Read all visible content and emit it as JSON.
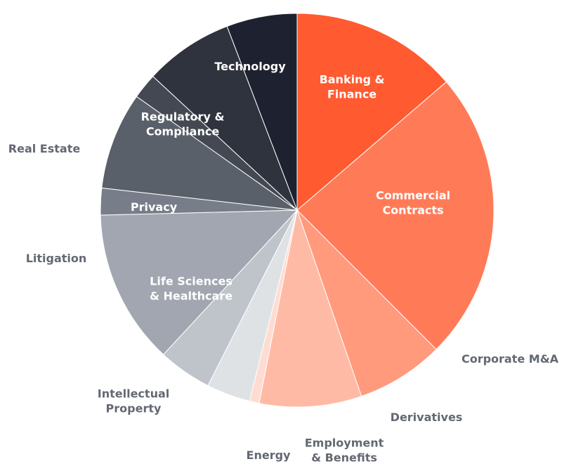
{
  "chart_data": {
    "type": "pie",
    "title": "",
    "slices": [
      {
        "label": "Banking & Finance",
        "value": 13.7,
        "color": "#ff5a30",
        "label_color": "#ffffff"
      },
      {
        "label": "Commercial Contracts",
        "value": 23.8,
        "color": "#ff7b58",
        "label_color": "#ffffff"
      },
      {
        "label": "Corporate M&A",
        "value": 7.2,
        "color": "#ff9a7c",
        "label_color": "#636872"
      },
      {
        "label": "Derivatives",
        "value": 8.4,
        "color": "#ffbaa6",
        "label_color": "#636872"
      },
      {
        "label": "Employment & Benefits",
        "value": 0.8,
        "color": "#ffdcd2",
        "label_color": "#636872"
      },
      {
        "label": "Energy",
        "value": 3.6,
        "color": "#dfe2e5",
        "label_color": "#636872"
      },
      {
        "label": "Intellectual Property",
        "value": 4.4,
        "color": "#bfc4ca",
        "label_color": "#636872"
      },
      {
        "label": "Life Sciences & Healthcare",
        "value": 12.7,
        "color": "#a1a6b0",
        "label_color": "#ffffff"
      },
      {
        "label": "Litigation",
        "value": 2.2,
        "color": "#777d89",
        "label_color": "#636872"
      },
      {
        "label": "Privacy",
        "value": 8.0,
        "color": "#5a6069",
        "label_color": "#ffffff"
      },
      {
        "label": "Real Estate",
        "value": 2.1,
        "color": "#434852",
        "label_color": "#636872"
      },
      {
        "label": "Regulatory & Compliance",
        "value": 7.3,
        "color": "#2f333d",
        "label_color": "#ffffff"
      },
      {
        "label": "Technology",
        "value": 5.8,
        "color": "#1e2230",
        "label_color": "#ffffff"
      }
    ],
    "legend": "none"
  }
}
